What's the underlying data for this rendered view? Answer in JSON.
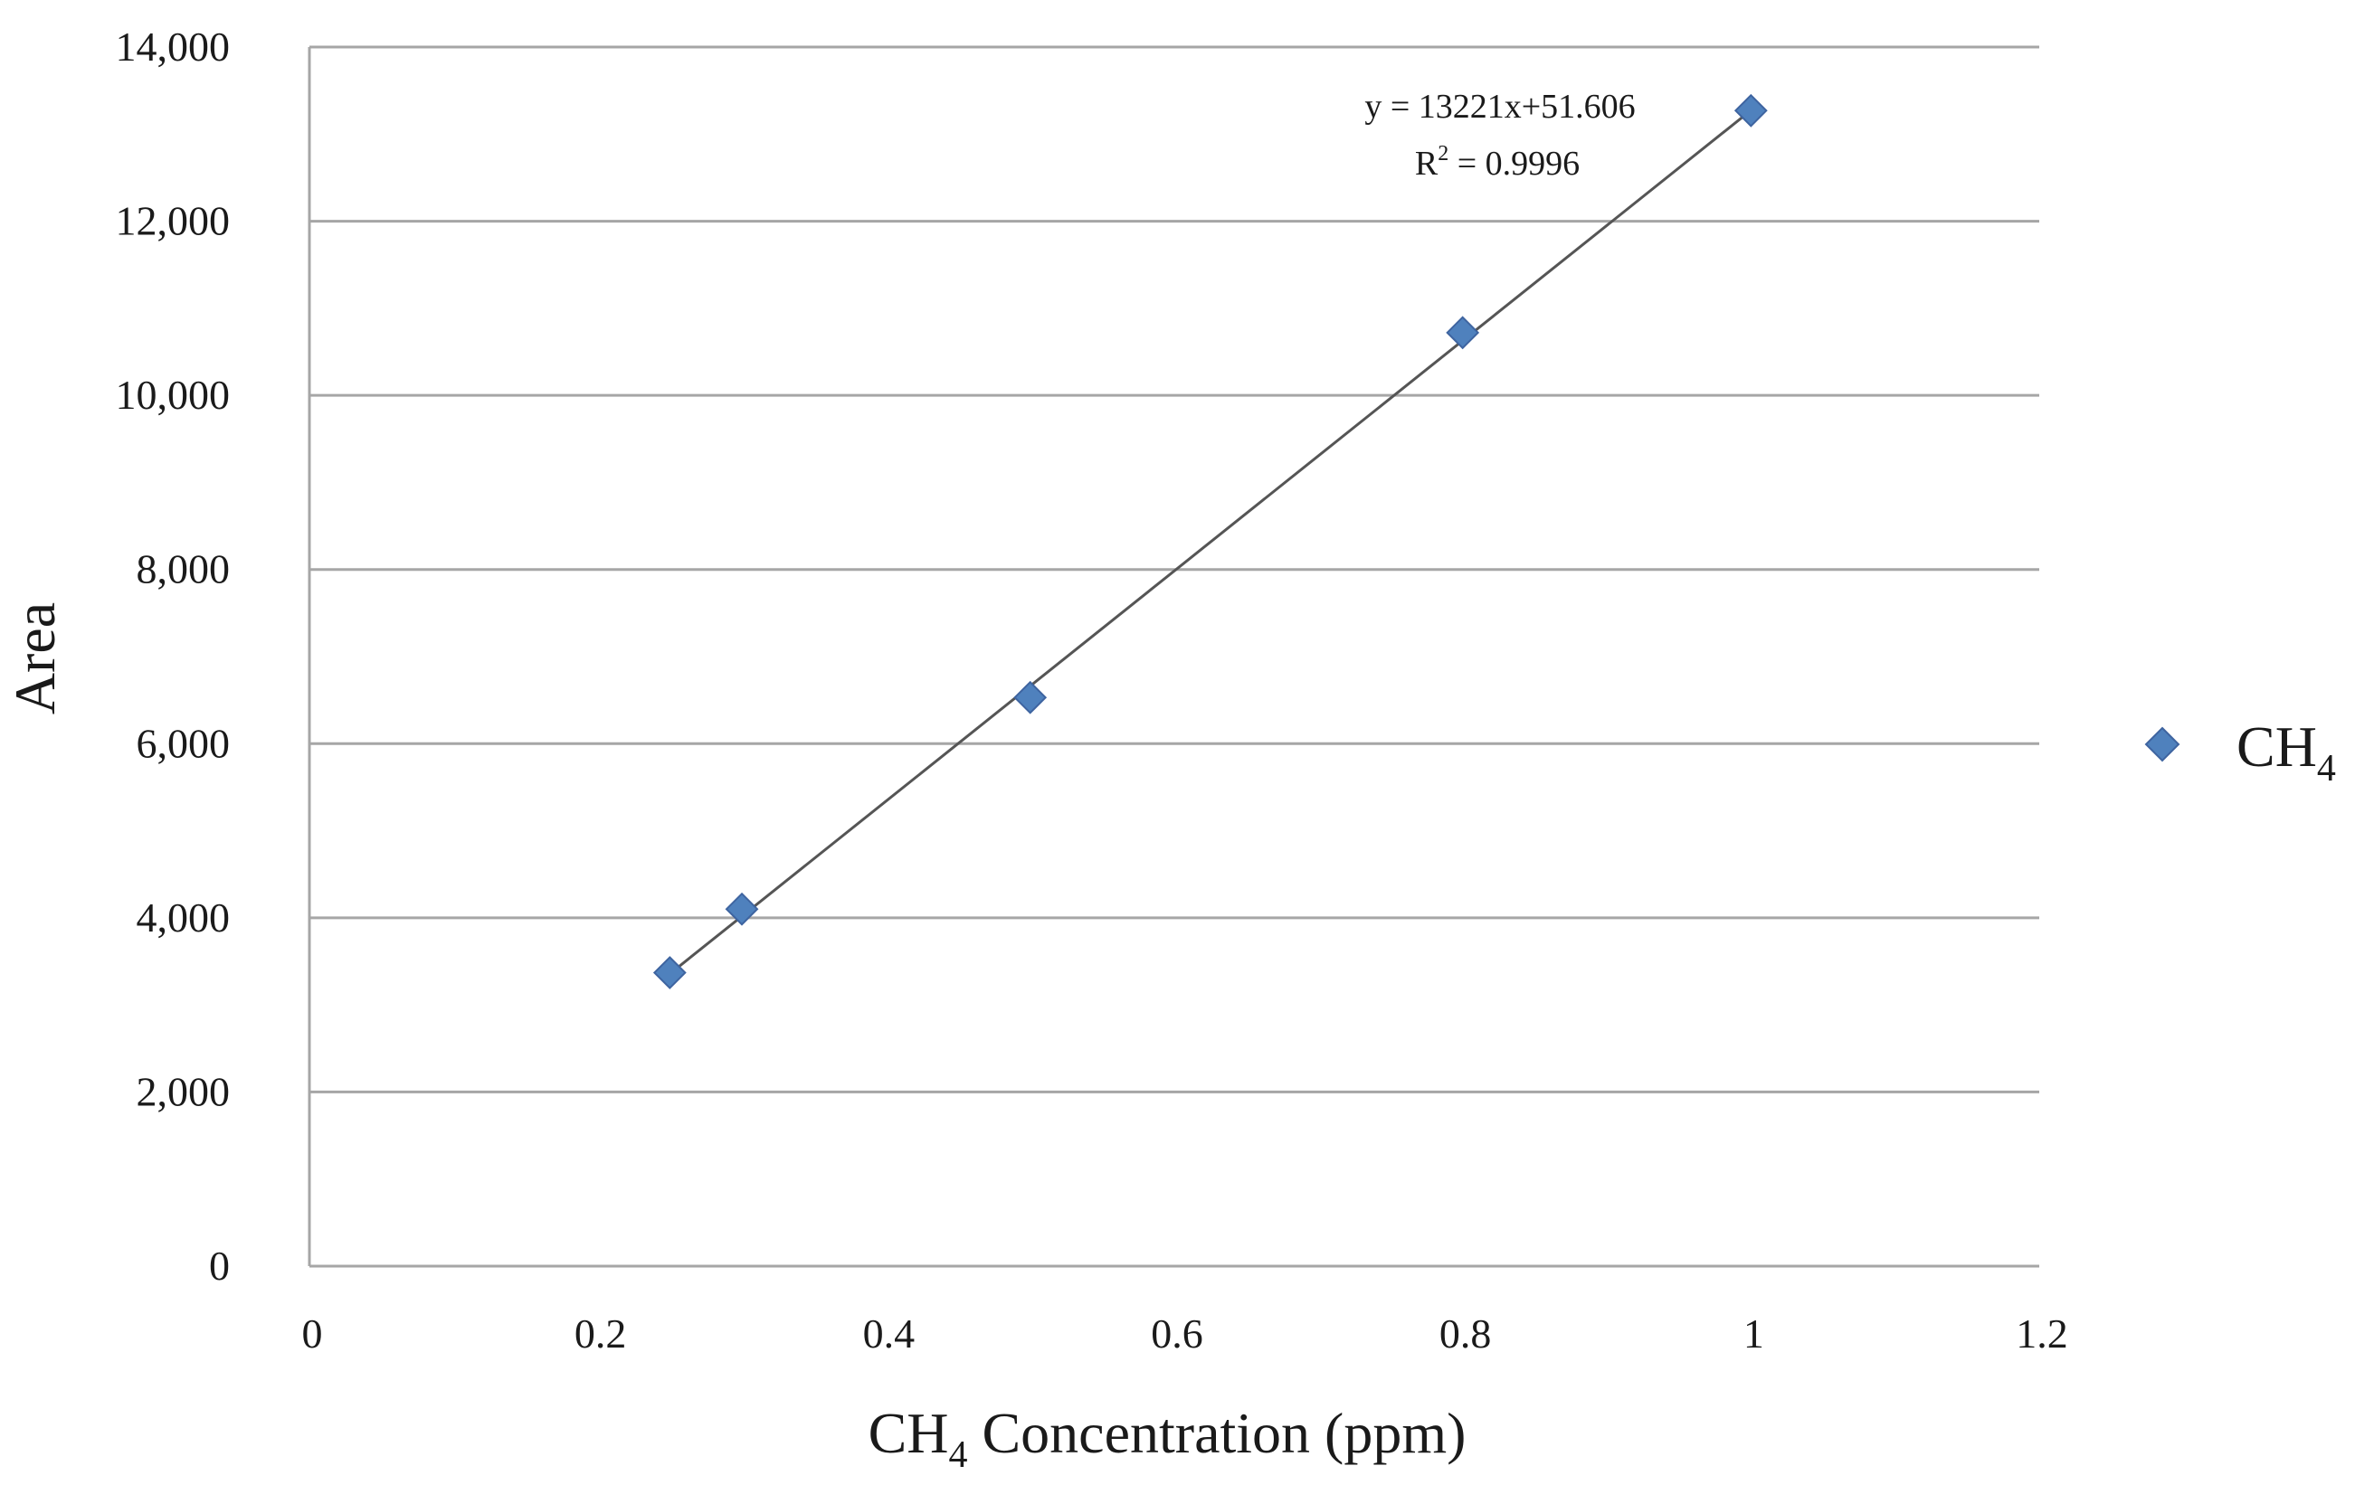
{
  "chart_data": {
    "type": "scatter",
    "title": "",
    "xlabel": "CH4 Concentration (ppm)",
    "xlabel_parts": {
      "pre": "CH",
      "sub": "4",
      "post": " Concentration (ppm)"
    },
    "ylabel": "Area",
    "xlim": [
      0,
      1.2
    ],
    "ylim": [
      0,
      14000
    ],
    "grid": "horizontal",
    "legend_position": "right",
    "x_tick_labels": [
      "0",
      "0.2",
      "0.4",
      "0.6",
      "0.8",
      "1",
      "1.2"
    ],
    "x_ticks": [
      0,
      0.2,
      0.4,
      0.6,
      0.8,
      1.0,
      1.2
    ],
    "y_tick_labels": [
      "0",
      "2,000",
      "4,000",
      "6,000",
      "8,000",
      "10,000",
      "12,000",
      "14,000"
    ],
    "y_ticks": [
      0,
      2000,
      4000,
      6000,
      8000,
      10000,
      12000,
      14000
    ],
    "series": [
      {
        "name": "CH4",
        "name_parts": {
          "pre": "CH",
          "sub": "4"
        },
        "color": "#4f81bd",
        "marker": "diamond",
        "x": [
          0.25,
          0.3,
          0.5,
          0.8,
          1.0
        ],
        "y": [
          3370,
          4100,
          6530,
          10720,
          13270
        ]
      }
    ],
    "trendline": {
      "type": "linear",
      "slope": 13221,
      "intercept": 51.606,
      "x_range": [
        0.25,
        1.0
      ],
      "equation_label": "y = 13221x+51.606",
      "r2_label_pre": "R",
      "r2_label_sup": "2",
      "r2_label_post": " = 0.9996"
    }
  }
}
